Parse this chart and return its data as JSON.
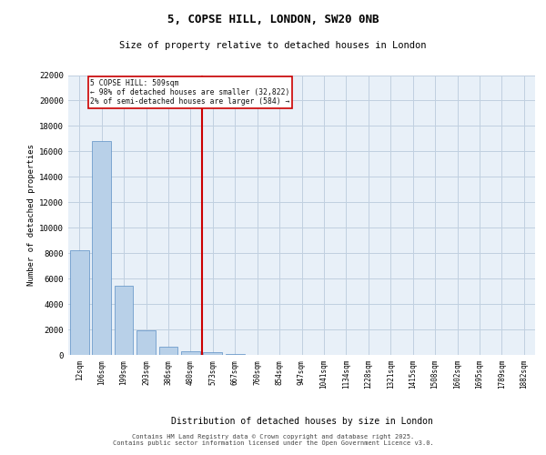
{
  "title_line1": "5, COPSE HILL, LONDON, SW20 0NB",
  "title_line2": "Size of property relative to detached houses in London",
  "xlabel": "Distribution of detached houses by size in London",
  "ylabel": "Number of detached properties",
  "categories": [
    "12sqm",
    "106sqm",
    "199sqm",
    "293sqm",
    "386sqm",
    "480sqm",
    "573sqm",
    "667sqm",
    "760sqm",
    "854sqm",
    "947sqm",
    "1041sqm",
    "1134sqm",
    "1228sqm",
    "1321sqm",
    "1415sqm",
    "1508sqm",
    "1602sqm",
    "1695sqm",
    "1789sqm",
    "1882sqm"
  ],
  "values": [
    8200,
    16800,
    5450,
    1950,
    650,
    300,
    180,
    80,
    0,
    0,
    0,
    0,
    0,
    0,
    0,
    0,
    0,
    0,
    0,
    0,
    0
  ],
  "bar_color": "#b8d0e8",
  "bar_edge_color": "#5b8fc4",
  "vline_x": 5.5,
  "vline_color": "#cc0000",
  "annotation_text": "5 COPSE HILL: 509sqm\n← 98% of detached houses are smaller (32,822)\n2% of semi-detached houses are larger (584) →",
  "annotation_box_edgecolor": "#cc0000",
  "ylim": [
    0,
    22000
  ],
  "yticks": [
    0,
    2000,
    4000,
    6000,
    8000,
    10000,
    12000,
    14000,
    16000,
    18000,
    20000,
    22000
  ],
  "grid_color": "#c0d0e0",
  "bg_color": "#e8f0f8",
  "footer": "Contains HM Land Registry data © Crown copyright and database right 2025.\nContains public sector information licensed under the Open Government Licence v3.0."
}
